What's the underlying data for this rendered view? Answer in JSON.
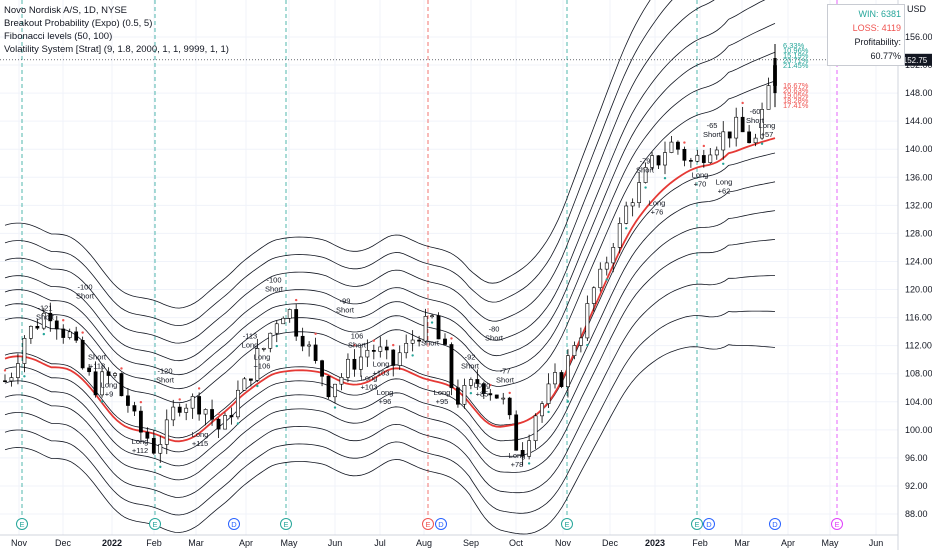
{
  "legend": {
    "symbol": "Novo Nordisk A/S, 1D, NYSE",
    "ind1": "Breakout Probability (Expo) (0.5, 5)",
    "ind2": "Fibonacci levels (50, 100)",
    "ind3": "Volatility System [Strat] (9, 1.8, 2000, 1, 1, 9999, 1, 1)"
  },
  "stats": {
    "win": "WIN: 6381",
    "loss": "LOSS: 4119",
    "profitability": "Profitability: 60.77%"
  },
  "currency": "USD",
  "price_tag": {
    "ticker": "NVO",
    "price": "152.75"
  },
  "colors": {
    "up": "#26a69a",
    "down": "#ef5350",
    "candle": "#000000",
    "band": "#131722",
    "midline": "#e53935"
  },
  "chart_data": {
    "type": "candlestick",
    "title": "Novo Nordisk A/S, 1D, NYSE",
    "ylabel": "USD",
    "ylim": [
      86,
      158
    ],
    "y_ticks": [
      "156.00",
      "152.00",
      "148.00",
      "144.00",
      "140.00",
      "136.00",
      "132.00",
      "128.00",
      "124.00",
      "120.00",
      "116.00",
      "112.00",
      "108.00",
      "104.00",
      "100.00",
      "96.00",
      "92.00",
      "88.00"
    ],
    "x_ticks": [
      "Nov",
      "Dec",
      "2022",
      "Feb",
      "Mar",
      "Apr",
      "May",
      "Jun",
      "Jul",
      "Aug",
      "Sep",
      "Oct",
      "Nov",
      "Dec",
      "2023",
      "Feb",
      "Mar",
      "Apr",
      "May",
      "Jun"
    ],
    "last_price": 152.75,
    "close_path": [
      [
        "Oct 2021",
        107
      ],
      [
        "Nov 2021",
        114
      ],
      [
        "Nov 2021",
        117
      ],
      [
        "Dec 2021",
        113
      ],
      [
        "Dec 2021",
        106
      ],
      [
        "2022",
        108
      ],
      [
        "Jan 2022",
        101
      ],
      [
        "Jan 2022",
        97
      ],
      [
        "Feb 2022",
        104
      ],
      [
        "Feb 2022",
        104
      ],
      [
        "Mar 2022",
        100
      ],
      [
        "Mar 2022",
        106
      ],
      [
        "Apr 2022",
        112
      ],
      [
        "Apr 2022",
        118
      ],
      [
        "May 2022",
        112
      ],
      [
        "May 2022",
        106
      ],
      [
        "Jun 2022",
        109
      ],
      [
        "Jun 2022",
        112
      ],
      [
        "Jul 2022",
        109
      ],
      [
        "Jul 2022",
        113
      ],
      [
        "Aug 2022",
        116
      ],
      [
        "Aug 2022",
        104
      ],
      [
        "Sep 2022",
        107
      ],
      [
        "Sep 2022",
        105
      ],
      [
        "Oct 2022",
        97
      ],
      [
        "Oct 2022",
        104
      ],
      [
        "Nov 2022",
        108
      ],
      [
        "Nov 2022",
        116
      ],
      [
        "Dec 2022",
        124
      ],
      [
        "Dec 2022",
        132
      ],
      [
        "2023",
        137
      ],
      [
        "Jan 2023",
        141
      ],
      [
        "Feb 2023",
        138
      ],
      [
        "Feb 2023",
        141
      ],
      [
        "Mar 2023",
        143
      ],
      [
        "Mar 2023",
        141
      ],
      [
        "Apr 2023",
        152.75
      ]
    ],
    "trade_labels": [
      {
        "x": "Nov 2021",
        "y": 117,
        "text": "-121",
        "sub": "Short"
      },
      {
        "x": "Dec 2021",
        "y": 120,
        "text": "-100",
        "sub": "Short"
      },
      {
        "x": "Dec 2021",
        "y": 110,
        "text": "Short",
        "sub": "+118"
      },
      {
        "x": "Dec 2021",
        "y": 106,
        "text": "Long",
        "sub": "+9"
      },
      {
        "x": "Feb 2022",
        "y": 108,
        "text": "-120",
        "sub": "Short"
      },
      {
        "x": "Mar 2022",
        "y": 99,
        "text": "Long",
        "sub": "+115"
      },
      {
        "x": "Jan 2022",
        "y": 98,
        "text": "Long",
        "sub": "+112"
      },
      {
        "x": "Apr 2022",
        "y": 113,
        "text": "-113",
        "sub": "Long"
      },
      {
        "x": "Apr 2022",
        "y": 110,
        "text": "Long",
        "sub": "+106"
      },
      {
        "x": "Apr 2022",
        "y": 121,
        "text": "-100",
        "sub": "Short"
      },
      {
        "x": "Jun 2022",
        "y": 118,
        "text": "-99",
        "sub": "Short"
      },
      {
        "x": "Jun 2022",
        "y": 113,
        "text": "106",
        "sub": "Short"
      },
      {
        "x": "Jun 2022",
        "y": 107,
        "text": "Long",
        "sub": "+103"
      },
      {
        "x": "Jun 2022",
        "y": 109,
        "text": "Long",
        "sub": "+103"
      },
      {
        "x": "Jul 2022",
        "y": 105,
        "text": "Long",
        "sub": "+96"
      },
      {
        "x": "Aug 2022",
        "y": 112,
        "text": "Short",
        "sub": ""
      },
      {
        "x": "Aug 2022",
        "y": 105,
        "text": "Long",
        "sub": "+95"
      },
      {
        "x": "Sep 2022",
        "y": 110,
        "text": "-92",
        "sub": "Short"
      },
      {
        "x": "Sep 2022",
        "y": 106,
        "text": "Long",
        "sub": "+85"
      },
      {
        "x": "Sep 2022",
        "y": 114,
        "text": "-80",
        "sub": "Short"
      },
      {
        "x": "Oct 2022",
        "y": 108,
        "text": "-77",
        "sub": "Short"
      },
      {
        "x": "Oct 2022",
        "y": 96,
        "text": "Long",
        "sub": "+78"
      },
      {
        "x": "Jan 2023",
        "y": 138,
        "text": "-79",
        "sub": "Short"
      },
      {
        "x": "Jan 2023",
        "y": 132,
        "text": "Long",
        "sub": "+76"
      },
      {
        "x": "Feb 2023",
        "y": 136,
        "text": "Long",
        "sub": "+70"
      },
      {
        "x": "Feb 2023",
        "y": 143,
        "text": "-65",
        "sub": "Short"
      },
      {
        "x": "Feb 2023",
        "y": 135,
        "text": "Long",
        "sub": "+62"
      },
      {
        "x": "Mar 2023",
        "y": 145,
        "text": "-60",
        "sub": "Short"
      },
      {
        "x": "Mar 2023",
        "y": 143,
        "text": "Long",
        "sub": "+57"
      }
    ],
    "fib_up_labels": [
      "6.33%",
      "10.96%",
      "15.19%",
      "20.71%",
      "21.45%"
    ],
    "fib_down_labels": [
      "16.67%",
      "20.63%",
      "19.05%",
      "18.28%",
      "17.41%"
    ],
    "event_markers": [
      {
        "x": "Nov 2021",
        "type": "E",
        "color": "#26a69a"
      },
      {
        "x": "Feb 2022",
        "type": "E",
        "color": "#26a69a"
      },
      {
        "x": "Mar 2022",
        "type": "D",
        "color": "#2962ff"
      },
      {
        "x": "May 2022",
        "type": "E",
        "color": "#26a69a"
      },
      {
        "x": "Aug 2022",
        "type": "E",
        "color": "#ef5350"
      },
      {
        "x": "Aug 2022",
        "type": "D",
        "color": "#2962ff"
      },
      {
        "x": "Nov 2022",
        "type": "E",
        "color": "#26a69a"
      },
      {
        "x": "Feb 2023",
        "type": "E",
        "color": "#26a69a"
      },
      {
        "x": "Feb 2023",
        "type": "D",
        "color": "#2962ff"
      },
      {
        "x": "Mar 2023",
        "type": "D",
        "color": "#2962ff"
      },
      {
        "x": "May 2023",
        "type": "E",
        "color": "#e040fb"
      }
    ]
  }
}
